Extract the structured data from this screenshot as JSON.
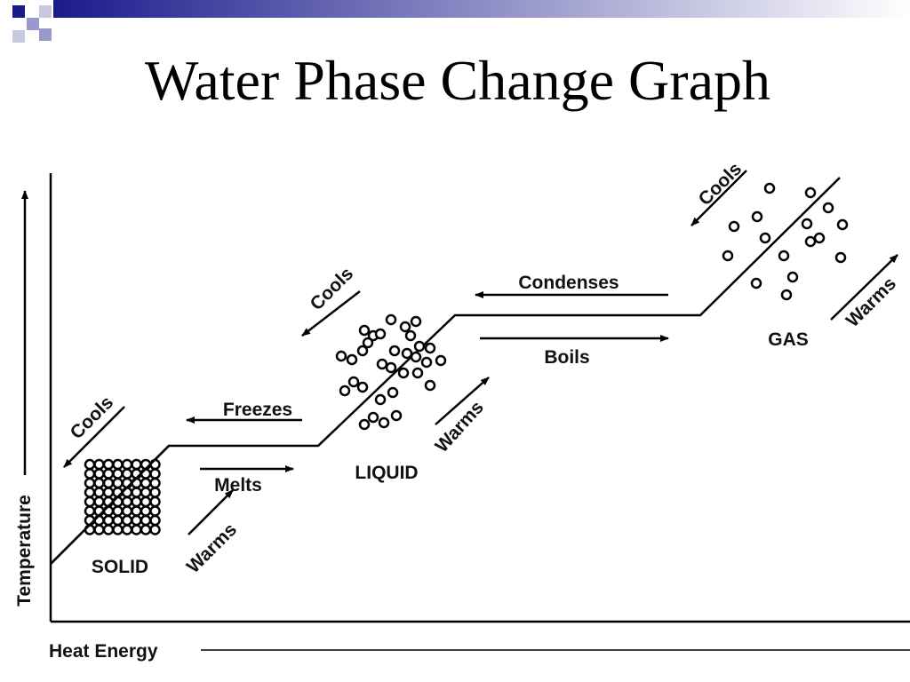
{
  "title": "Water Phase Change Graph",
  "axes": {
    "y": "Temperature",
    "x": "Heat Energy"
  },
  "phases": [
    "SOLID",
    "LIQUID",
    "GAS"
  ],
  "labels": [
    "Cools",
    "Warms",
    "Freezes",
    "Melts",
    "Cools",
    "Warms",
    "Condenses",
    "Boils",
    "Cools",
    "Warms"
  ]
}
